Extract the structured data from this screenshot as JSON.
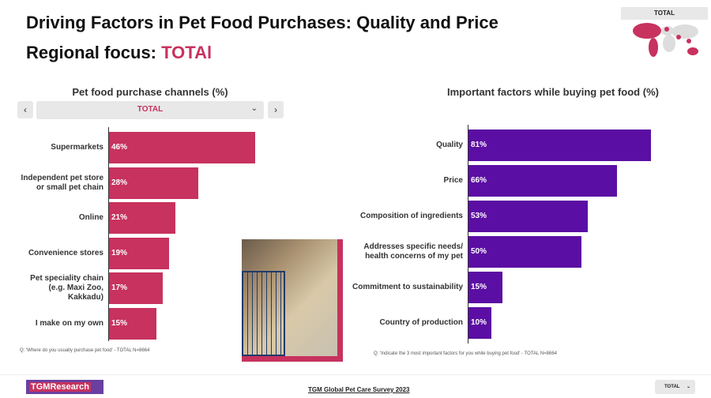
{
  "header": {
    "title": "Driving Factors in Pet Food Purchases: Quality and Price",
    "focus_label": "Regional focus:",
    "focus_value": "TOTAl"
  },
  "map_widget": {
    "label": "TOTAL"
  },
  "colors": {
    "pink": "#c7325e",
    "purple": "#5b0ea3"
  },
  "left_nav": {
    "prev": "‹",
    "next": "›",
    "selected": "TOTAL",
    "chevron": "⌄"
  },
  "chart_data": [
    {
      "type": "bar",
      "orientation": "horizontal",
      "title": "Pet food purchase channels (%)",
      "categories": [
        "Supermarkets",
        "Independent pet store or small pet chain",
        "Online",
        "Convenience stores",
        "Pet speciality chain (e.g. Maxi Zoo, Kakkadu)",
        "I make on my own"
      ],
      "values": [
        46,
        28,
        21,
        19,
        17,
        15
      ],
      "labels": [
        "46%",
        "28%",
        "21%",
        "19%",
        "17%",
        "15%"
      ],
      "note": "Q: 'Where do you usually purchase pet food' - TOTAL N=8664"
    },
    {
      "type": "bar",
      "orientation": "horizontal",
      "title": "Important factors while buying pet food (%)",
      "categories": [
        "Quality",
        "Price",
        "Composition of ingredients",
        "Addresses specific needs/ health concerns of my pet",
        "Commitment to sustainability",
        "Country of production"
      ],
      "values": [
        81,
        66,
        53,
        50,
        15,
        10
      ],
      "labels": [
        "81%",
        "66%",
        "53%",
        "50%",
        "15%",
        "10%"
      ],
      "note": "Q: 'Indicate the 3 most important factors for you while buying pet food' - TOTAL N=8664"
    }
  ],
  "footer": {
    "logo": "TGMResearch",
    "survey": "TGM Global Pet Care Survey 2023",
    "select": "TOTAL",
    "chevron": "⌄"
  }
}
